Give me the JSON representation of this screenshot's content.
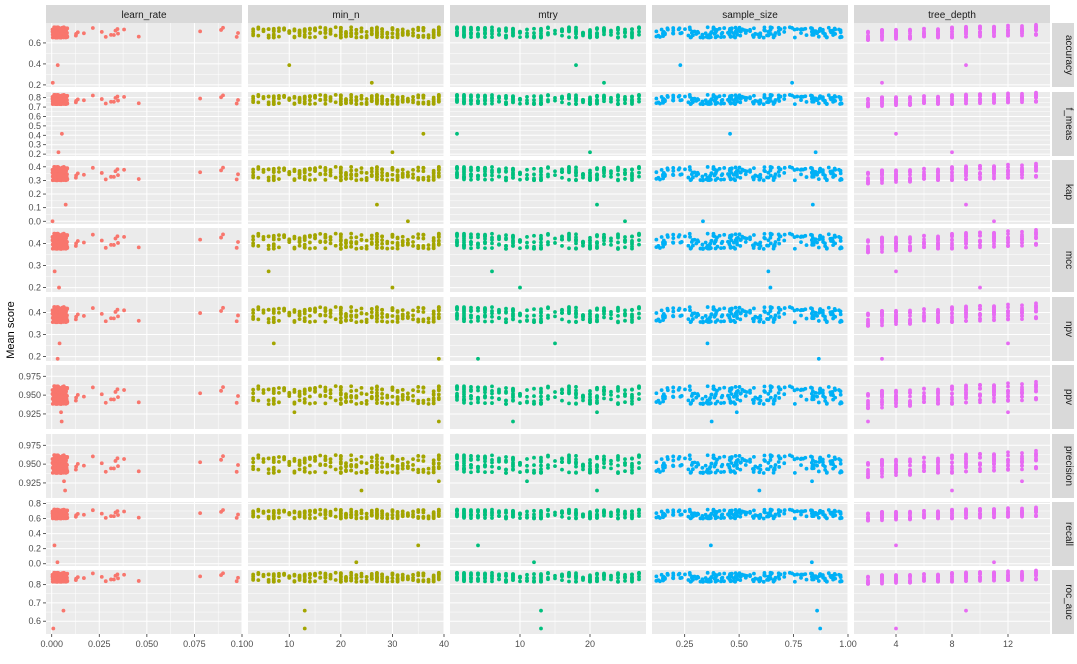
{
  "chart_data": {
    "type": "scatter",
    "title": "",
    "xlabel": "",
    "ylabel": "Mean score",
    "grid": true,
    "legend": "none",
    "facet_columns": [
      {
        "name": "learn_rate",
        "color": "#F8766D",
        "xlim": [
          -0.003,
          0.1
        ],
        "ticks": [
          0.0,
          0.025,
          0.05,
          0.075,
          0.1
        ],
        "tick_labels": [
          "0.000",
          "0.025",
          "0.050",
          "0.075",
          "0.100"
        ]
      },
      {
        "name": "min_n",
        "color": "#A3A500",
        "xlim": [
          2,
          40
        ],
        "ticks": [
          10,
          20,
          30,
          40
        ],
        "tick_labels": [
          "10",
          "20",
          "30",
          "40"
        ]
      },
      {
        "name": "mtry",
        "color": "#00BF7D",
        "xlim": [
          0,
          28
        ],
        "ticks": [
          10,
          20
        ],
        "tick_labels": [
          "10",
          "20"
        ]
      },
      {
        "name": "sample_size",
        "color": "#00B0F6",
        "xlim": [
          0.1,
          1.0
        ],
        "ticks": [
          0.25,
          0.5,
          0.75,
          1.0
        ],
        "tick_labels": [
          "0.25",
          "0.50",
          "0.75",
          "1.00"
        ]
      },
      {
        "name": "tree_depth",
        "color": "#E76BF3",
        "xlim": [
          1,
          15
        ],
        "ticks": [
          4,
          8,
          12
        ],
        "tick_labels": [
          "4",
          "8",
          "12"
        ]
      }
    ],
    "facet_rows": [
      {
        "name": "accuracy",
        "ylim": [
          0.18,
          0.79
        ],
        "ticks": [
          0.2,
          0.4,
          0.6
        ],
        "tick_labels": [
          "0.2",
          "0.4",
          "0.6"
        ],
        "center": 0.7,
        "spread": 0.05,
        "low": 0.22
      },
      {
        "name": "f_meas",
        "ylim": [
          0.18,
          0.86
        ],
        "ticks": [
          0.2,
          0.3,
          0.4,
          0.5,
          0.6,
          0.7,
          0.8
        ],
        "tick_labels": [
          "0.2",
          "0.3",
          "0.4",
          "0.5",
          "0.6",
          "0.7",
          "0.8"
        ],
        "center": 0.78,
        "spread": 0.05,
        "low": 0.22
      },
      {
        "name": "kap",
        "ylim": [
          -0.02,
          0.45
        ],
        "ticks": [
          0.0,
          0.1,
          0.2,
          0.3,
          0.4
        ],
        "tick_labels": [
          "0.0",
          "0.1",
          "0.2",
          "0.3",
          "0.4"
        ],
        "center": 0.35,
        "spread": 0.05,
        "low": 0.0
      },
      {
        "name": "mcc",
        "ylim": [
          0.18,
          0.47
        ],
        "ticks": [
          0.2,
          0.3,
          0.4
        ],
        "tick_labels": [
          "0.2",
          "0.3",
          "0.4"
        ],
        "center": 0.41,
        "spread": 0.035,
        "low": 0.2
      },
      {
        "name": "npv",
        "ylim": [
          0.18,
          0.47
        ],
        "ticks": [
          0.2,
          0.3,
          0.4
        ],
        "tick_labels": [
          "0.2",
          "0.3",
          "0.4"
        ],
        "center": 0.39,
        "spread": 0.035,
        "low": 0.19
      },
      {
        "name": "ppv",
        "ylim": [
          0.905,
          0.99
        ],
        "ticks": [
          0.925,
          0.95,
          0.975
        ],
        "tick_labels": [
          "0.925",
          "0.950",
          "0.975"
        ],
        "center": 0.95,
        "spread": 0.012,
        "low": 0.915
      },
      {
        "name": "precision",
        "ylim": [
          0.905,
          0.99
        ],
        "ticks": [
          0.925,
          0.95,
          0.975
        ],
        "tick_labels": [
          "0.925",
          "0.950",
          "0.975"
        ],
        "center": 0.95,
        "spread": 0.012,
        "low": 0.915
      },
      {
        "name": "recall",
        "ylim": [
          -0.03,
          0.82
        ],
        "ticks": [
          0.0,
          0.2,
          0.4,
          0.6,
          0.8
        ],
        "tick_labels": [
          "0.0",
          "0.2",
          "0.4",
          "0.6",
          "0.8"
        ],
        "center": 0.66,
        "spread": 0.06,
        "low": 0.02
      },
      {
        "name": "roc_auc",
        "ylim": [
          0.53,
          0.88
        ],
        "ticks": [
          0.6,
          0.7,
          0.8
        ],
        "tick_labels": [
          "0.6",
          "0.7",
          "0.8"
        ],
        "center": 0.84,
        "spread": 0.025,
        "low": 0.56
      }
    ]
  }
}
